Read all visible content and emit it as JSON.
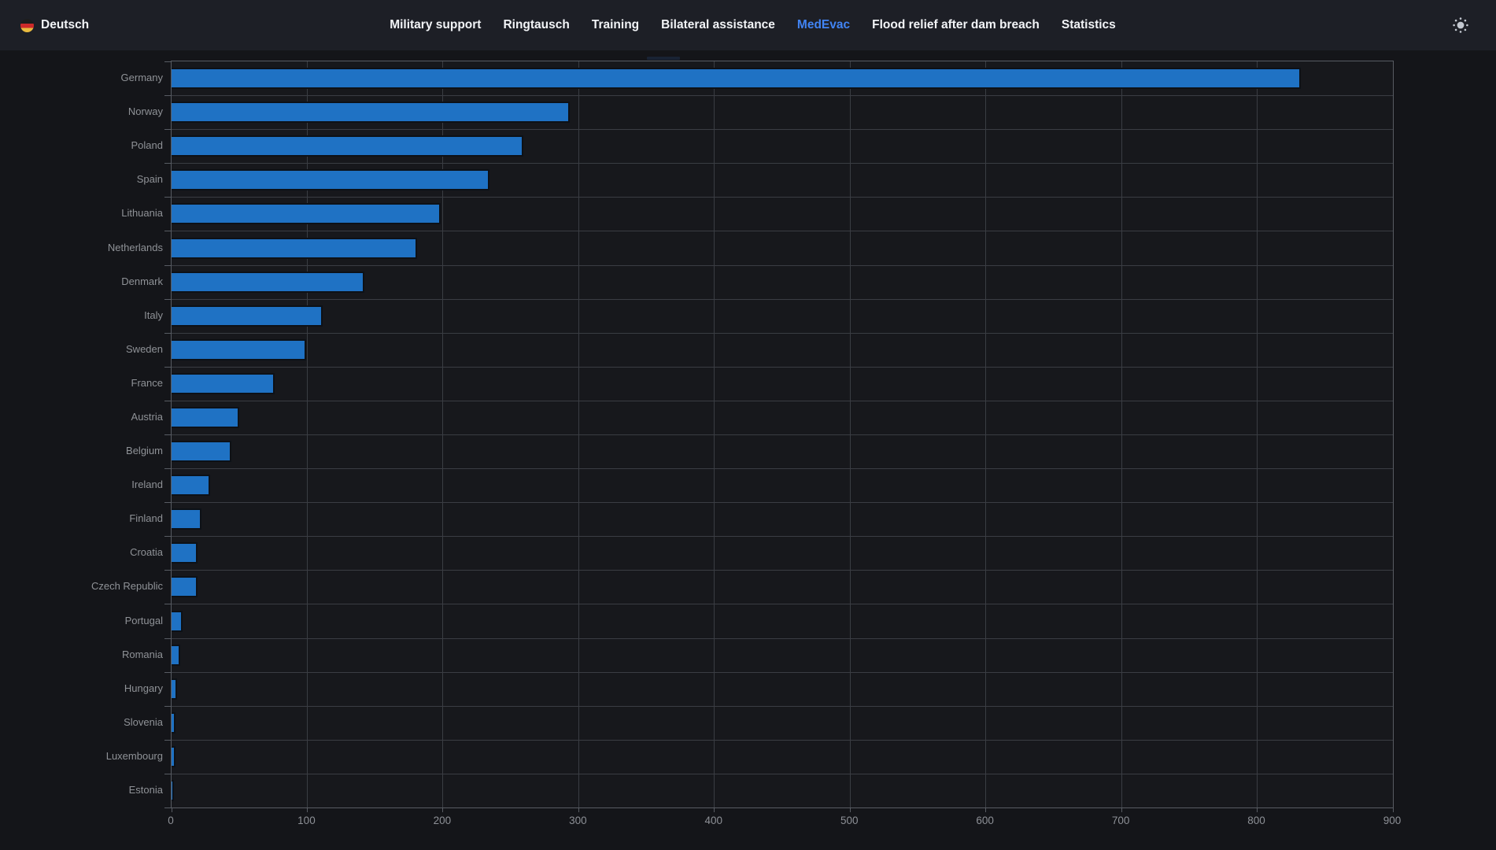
{
  "nav": {
    "language": {
      "label": "Deutsch",
      "flag_icon": "german-flag-icon"
    },
    "items": [
      {
        "label": "Military support",
        "active": false
      },
      {
        "label": "Ringtausch",
        "active": false
      },
      {
        "label": "Training",
        "active": false
      },
      {
        "label": "Bilateral assistance",
        "active": false
      },
      {
        "label": "MedEvac",
        "active": true
      },
      {
        "label": "Flood relief after dam breach",
        "active": false
      },
      {
        "label": "Statistics",
        "active": false
      }
    ],
    "theme_toggle_icon": "sun-icon"
  },
  "colors": {
    "accent": "#4184f4",
    "bar": "#1f72c4",
    "nav_background": "#1d1f26",
    "page_background": "#141519",
    "grid": "#3a3d43",
    "label_text": "#8f9297"
  },
  "chart_data": {
    "type": "bar",
    "orientation": "horizontal",
    "title": "",
    "xlabel": "",
    "ylabel": "",
    "categories": [
      "Germany",
      "Norway",
      "Poland",
      "Spain",
      "Lithuania",
      "Netherlands",
      "Denmark",
      "Italy",
      "Sweden",
      "France",
      "Austria",
      "Belgium",
      "Ireland",
      "Finland",
      "Croatia",
      "Czech Republic",
      "Portugal",
      "Romania",
      "Hungary",
      "Slovenia",
      "Luxembourg",
      "Estonia"
    ],
    "values": [
      831,
      292,
      258,
      233,
      197,
      180,
      141,
      110,
      98,
      75,
      49,
      43,
      27,
      21,
      18,
      18,
      7,
      5,
      3,
      2,
      1.5,
      0.5
    ],
    "xlim": [
      0,
      900
    ],
    "x_ticks": [
      0,
      100,
      200,
      300,
      400,
      500,
      600,
      700,
      800,
      900
    ],
    "grid": true,
    "legend_position": "none"
  }
}
